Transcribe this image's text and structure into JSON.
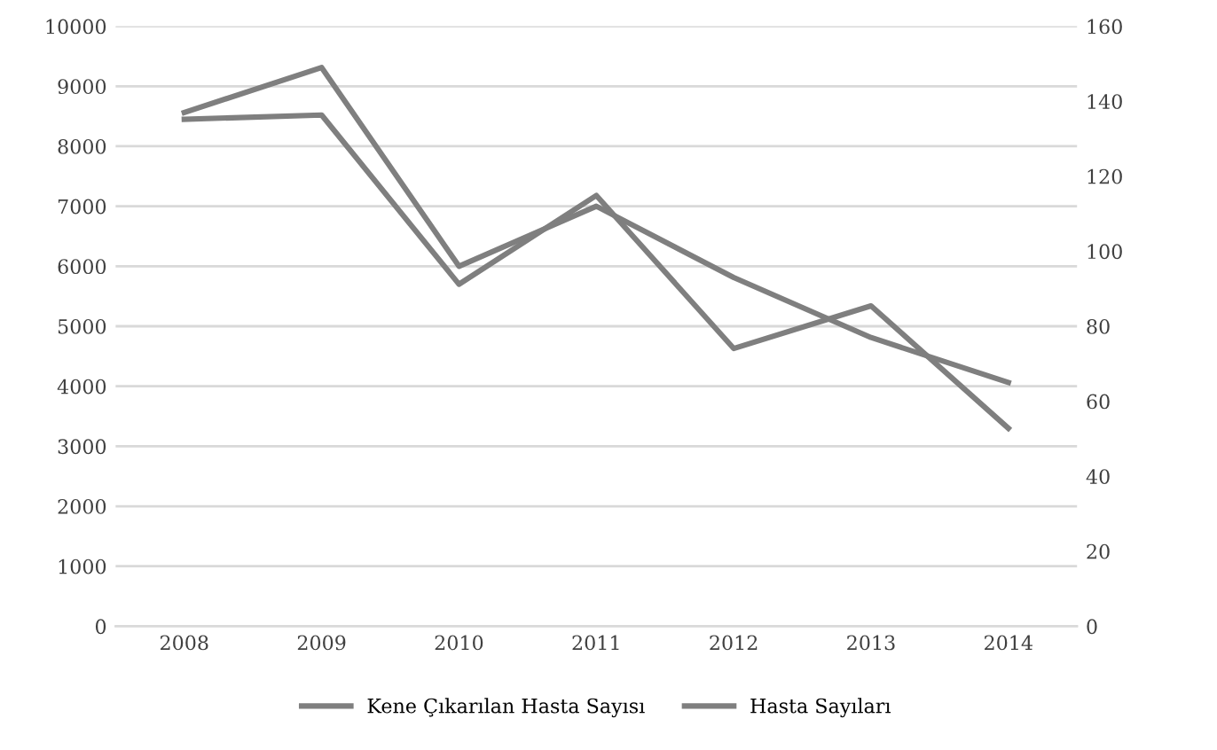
{
  "chart_data": {
    "type": "line",
    "categories": [
      "2008",
      "2009",
      "2010",
      "2011",
      "2012",
      "2013",
      "2014"
    ],
    "series": [
      {
        "name": "Kene Çıkarılan Hasta Sayısı",
        "color": "#7f7f7f",
        "values": [
          8450,
          8520,
          5700,
          7180,
          4630,
          5340,
          3300
        ]
      },
      {
        "name": "Hasta Sayıları",
        "color": "#7f7f7f",
        "axis": "y2",
        "values": [
          137,
          149,
          96,
          112,
          93,
          77,
          65
        ]
      }
    ],
    "ylim": [
      0,
      10000
    ],
    "yticks": [
      0,
      1000,
      2000,
      3000,
      4000,
      5000,
      6000,
      7000,
      8000,
      9000,
      10000
    ],
    "y2lim": [
      0,
      160
    ],
    "y2ticks": [
      0,
      20,
      40,
      60,
      80,
      100,
      120,
      140,
      160
    ],
    "grid": "y",
    "legend": "bottom",
    "marker": "none",
    "line_style": "solid"
  }
}
